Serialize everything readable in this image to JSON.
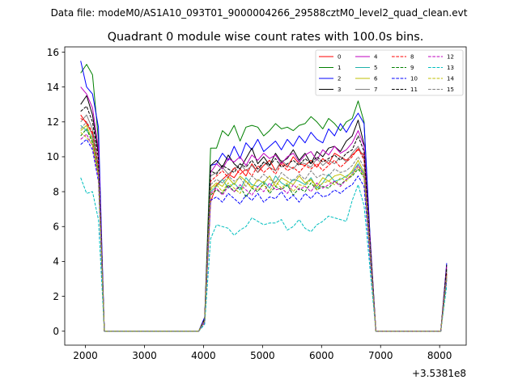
{
  "figure": {
    "suptitle": "Data file: modeM0/AS1A10_093T01_9000004266_29588cztM0_level2_quad_clean.evt"
  },
  "chart_data": {
    "type": "line",
    "title": "Quadrant 0 module wise count rates with 100.0s bins.",
    "xlabel": "",
    "ylabel": "",
    "x_offset_label": "+3.5381e8",
    "xlim": [
      1650,
      8450
    ],
    "ylim": [
      -0.8,
      16.3
    ],
    "x_ticks": [
      2000,
      3000,
      4000,
      5000,
      6000,
      7000,
      8000
    ],
    "x_tick_labels": [
      "2000",
      "3000",
      "4000",
      "5000",
      "6000",
      "7000",
      "8000"
    ],
    "y_ticks": [
      0,
      2,
      4,
      6,
      8,
      10,
      12,
      14,
      16
    ],
    "y_tick_labels": [
      "0",
      "2",
      "4",
      "6",
      "8",
      "10",
      "12",
      "14",
      "16"
    ],
    "legend_position": "top-right",
    "legend_columns": 4,
    "x": [
      1920,
      2020,
      2120,
      2220,
      2320,
      2420,
      2520,
      2620,
      2720,
      2820,
      2920,
      3020,
      3120,
      3220,
      3320,
      3420,
      3520,
      3620,
      3720,
      3820,
      3920,
      4020,
      4120,
      4220,
      4320,
      4420,
      4520,
      4620,
      4720,
      4820,
      4920,
      5020,
      5120,
      5220,
      5320,
      5420,
      5520,
      5620,
      5720,
      5820,
      5920,
      6020,
      6120,
      6220,
      6320,
      6420,
      6520,
      6620,
      6720,
      6820,
      6920,
      7020,
      7120,
      7220,
      7320,
      7420,
      7520,
      7620,
      7720,
      7820,
      7920,
      8020,
      8120
    ],
    "series": [
      {
        "name": "0",
        "color": "#ff0000",
        "dash": "solid",
        "values": [
          12.4,
          11.9,
          11.3,
          9.0,
          0,
          0,
          0,
          0,
          0,
          0,
          0,
          0,
          0,
          0,
          0,
          0,
          0,
          0,
          0,
          0,
          0,
          0.6,
          7.4,
          8.4,
          8.7,
          9.0,
          8.8,
          9.3,
          8.9,
          9.6,
          9.1,
          9.5,
          9.8,
          9.2,
          9.7,
          9.4,
          10.0,
          9.6,
          9.5,
          9.8,
          9.4,
          9.9,
          9.6,
          10.2,
          10.0,
          9.8,
          10.1,
          10.4,
          10.1,
          5.0,
          0,
          0,
          0,
          0,
          0,
          0,
          0,
          0,
          0,
          0,
          0,
          0,
          3.3
        ]
      },
      {
        "name": "1",
        "color": "#008000",
        "dash": "solid",
        "values": [
          14.8,
          15.3,
          14.7,
          11.0,
          0,
          0,
          0,
          0,
          0,
          0,
          0,
          0,
          0,
          0,
          0,
          0,
          0,
          0,
          0,
          0,
          0,
          0.8,
          10.5,
          10.5,
          11.5,
          11.2,
          11.8,
          10.9,
          11.7,
          11.8,
          11.7,
          11.2,
          11.5,
          11.9,
          11.6,
          11.7,
          11.5,
          11.8,
          11.9,
          12.3,
          12.0,
          11.6,
          12.2,
          11.9,
          11.5,
          12.0,
          12.2,
          13.2,
          12.0,
          5.5,
          0,
          0,
          0,
          0,
          0,
          0,
          0,
          0,
          0,
          0,
          0,
          0,
          3.5
        ]
      },
      {
        "name": "2",
        "color": "#0000ff",
        "dash": "solid",
        "values": [
          15.5,
          14.0,
          13.6,
          11.7,
          0,
          0,
          0,
          0,
          0,
          0,
          0,
          0,
          0,
          0,
          0,
          0,
          0,
          0,
          0,
          0,
          0,
          0.8,
          9.5,
          9.6,
          10.2,
          9.8,
          10.6,
          9.9,
          10.8,
          10.4,
          11.0,
          10.3,
          10.6,
          10.9,
          10.4,
          11.0,
          10.6,
          11.2,
          10.8,
          11.4,
          11.0,
          10.8,
          11.6,
          11.2,
          11.9,
          11.4,
          12.0,
          12.5,
          11.9,
          5.5,
          0,
          0,
          0,
          0,
          0,
          0,
          0,
          0,
          0,
          0,
          0,
          0,
          3.9
        ]
      },
      {
        "name": "3",
        "color": "#000000",
        "dash": "solid",
        "values": [
          13.0,
          13.5,
          12.4,
          10.2,
          0,
          0,
          0,
          0,
          0,
          0,
          0,
          0,
          0,
          0,
          0,
          0,
          0,
          0,
          0,
          0,
          0,
          0.7,
          9.5,
          9.8,
          9.4,
          10.1,
          9.6,
          9.3,
          9.9,
          10.5,
          9.6,
          10.0,
          9.5,
          10.2,
          9.7,
          9.9,
          10.4,
          9.8,
          10.2,
          9.6,
          10.3,
          10.0,
          10.5,
          10.6,
          10.3,
          10.9,
          11.2,
          12.1,
          10.7,
          5.2,
          0,
          0,
          0,
          0,
          0,
          0,
          0,
          0,
          0,
          0,
          0,
          0,
          3.8
        ]
      },
      {
        "name": "4",
        "color": "#bf00bf",
        "dash": "solid",
        "values": [
          14.0,
          13.6,
          12.8,
          10.5,
          0,
          0,
          0,
          0,
          0,
          0,
          0,
          0,
          0,
          0,
          0,
          0,
          0,
          0,
          0,
          0,
          0,
          0.7,
          9.1,
          9.6,
          9.3,
          9.9,
          9.7,
          10.0,
          9.5,
          10.1,
          9.8,
          10.2,
          9.9,
          10.1,
          9.6,
          10.0,
          10.2,
          9.7,
          10.1,
          10.3,
          9.8,
          10.4,
          10.1,
          10.6,
          10.2,
          10.4,
          10.8,
          11.5,
          10.6,
          5.3,
          0,
          0,
          0,
          0,
          0,
          0,
          0,
          0,
          0,
          0,
          0,
          0,
          3.7
        ]
      },
      {
        "name": "5",
        "color": "#20b2aa",
        "dash": "solid",
        "values": [
          11.8,
          11.5,
          11.1,
          9.3,
          0,
          0,
          0,
          0,
          0,
          0,
          0,
          0,
          0,
          0,
          0,
          0,
          0,
          0,
          0,
          0,
          0,
          0.6,
          8.0,
          8.3,
          8.7,
          8.2,
          8.5,
          8.1,
          8.8,
          8.4,
          8.3,
          8.6,
          8.2,
          8.9,
          8.5,
          8.3,
          8.7,
          8.6,
          8.4,
          8.8,
          8.2,
          8.5,
          9.0,
          8.6,
          8.7,
          8.9,
          9.1,
          9.6,
          9.0,
          4.5,
          0,
          0,
          0,
          0,
          0,
          0,
          0,
          0,
          0,
          0,
          0,
          0,
          3.1
        ]
      },
      {
        "name": "6",
        "color": "#bfbf00",
        "dash": "solid",
        "values": [
          11.5,
          11.8,
          10.9,
          9.1,
          0,
          0,
          0,
          0,
          0,
          0,
          0,
          0,
          0,
          0,
          0,
          0,
          0,
          0,
          0,
          0,
          0,
          0.6,
          8.2,
          8.5,
          8.3,
          8.8,
          8.4,
          8.9,
          8.6,
          8.2,
          8.7,
          8.5,
          8.9,
          8.3,
          8.8,
          8.6,
          8.4,
          8.9,
          8.5,
          8.7,
          8.3,
          8.8,
          8.6,
          8.9,
          9.0,
          8.8,
          9.2,
          9.8,
          9.1,
          4.6,
          0,
          0,
          0,
          0,
          0,
          0,
          0,
          0,
          0,
          0,
          0,
          0,
          3.2
        ]
      },
      {
        "name": "7",
        "color": "#808080",
        "dash": "solid",
        "values": [
          12.0,
          12.4,
          11.6,
          9.6,
          0,
          0,
          0,
          0,
          0,
          0,
          0,
          0,
          0,
          0,
          0,
          0,
          0,
          0,
          0,
          0,
          0,
          0.6,
          8.9,
          9.1,
          9.4,
          9.0,
          9.3,
          9.6,
          9.2,
          9.5,
          9.1,
          9.7,
          9.4,
          9.2,
          9.8,
          9.5,
          9.3,
          9.7,
          9.6,
          9.4,
          9.9,
          9.5,
          9.8,
          9.6,
          10.0,
          9.7,
          10.2,
          10.6,
          9.9,
          4.9,
          0,
          0,
          0,
          0,
          0,
          0,
          0,
          0,
          0,
          0,
          0,
          0,
          3.4
        ]
      },
      {
        "name": "8",
        "color": "#ff0000",
        "dash": "dashed",
        "values": [
          12.2,
          12.0,
          11.4,
          9.4,
          0,
          0,
          0,
          0,
          0,
          0,
          0,
          0,
          0,
          0,
          0,
          0,
          0,
          0,
          0,
          0,
          0,
          0.6,
          8.6,
          8.9,
          9.2,
          8.8,
          9.4,
          9.0,
          9.3,
          8.9,
          9.5,
          9.1,
          9.4,
          9.0,
          9.6,
          9.2,
          9.4,
          9.1,
          9.5,
          9.3,
          9.6,
          9.2,
          9.5,
          9.8,
          9.4,
          9.7,
          10.0,
          10.5,
          9.8,
          4.8,
          0,
          0,
          0,
          0,
          0,
          0,
          0,
          0,
          0,
          0,
          0,
          0,
          3.3
        ]
      },
      {
        "name": "9",
        "color": "#008000",
        "dash": "dashed",
        "values": [
          11.2,
          11.6,
          10.8,
          9.0,
          0,
          0,
          0,
          0,
          0,
          0,
          0,
          0,
          0,
          0,
          0,
          0,
          0,
          0,
          0,
          0,
          0,
          0.6,
          7.8,
          8.1,
          7.9,
          8.4,
          8.0,
          8.3,
          7.7,
          8.2,
          8.0,
          8.5,
          7.9,
          8.3,
          8.1,
          8.4,
          7.8,
          8.2,
          8.0,
          8.5,
          8.1,
          8.3,
          8.2,
          8.6,
          8.4,
          8.7,
          8.9,
          9.3,
          8.8,
          4.4,
          0,
          0,
          0,
          0,
          0,
          0,
          0,
          0,
          0,
          0,
          0,
          0,
          3.0
        ]
      },
      {
        "name": "10",
        "color": "#0000ff",
        "dash": "dashed",
        "values": [
          10.7,
          11.0,
          10.4,
          8.6,
          0,
          0,
          0,
          0,
          0,
          0,
          0,
          0,
          0,
          0,
          0,
          0,
          0,
          0,
          0,
          0,
          0,
          0.5,
          7.5,
          7.7,
          7.4,
          7.9,
          7.6,
          7.3,
          7.8,
          7.5,
          7.9,
          7.4,
          7.7,
          7.6,
          8.0,
          7.5,
          7.8,
          7.4,
          7.9,
          7.6,
          8.0,
          7.7,
          7.8,
          8.1,
          7.9,
          8.2,
          8.4,
          8.9,
          8.3,
          4.2,
          0,
          0,
          0,
          0,
          0,
          0,
          0,
          0,
          0,
          0,
          0,
          0,
          2.9
        ]
      },
      {
        "name": "11",
        "color": "#000000",
        "dash": "dashed",
        "values": [
          12.6,
          12.9,
          12.0,
          9.9,
          0,
          0,
          0,
          0,
          0,
          0,
          0,
          0,
          0,
          0,
          0,
          0,
          0,
          0,
          0,
          0,
          0,
          0.7,
          9.2,
          9.0,
          9.5,
          9.3,
          9.1,
          9.6,
          9.4,
          9.8,
          9.3,
          9.7,
          9.5,
          9.9,
          9.4,
          9.6,
          9.8,
          9.5,
          9.9,
          9.6,
          10.0,
          9.7,
          9.9,
          10.1,
          9.8,
          10.2,
          10.4,
          11.2,
          10.3,
          5.1,
          0,
          0,
          0,
          0,
          0,
          0,
          0,
          0,
          0,
          0,
          0,
          0,
          3.6
        ]
      },
      {
        "name": "12",
        "color": "#bf00bf",
        "dash": "dashed",
        "values": [
          11.0,
          11.3,
          10.6,
          8.8,
          0,
          0,
          0,
          0,
          0,
          0,
          0,
          0,
          0,
          0,
          0,
          0,
          0,
          0,
          0,
          0,
          0,
          0.5,
          7.9,
          8.2,
          7.8,
          8.3,
          8.0,
          8.4,
          8.1,
          7.8,
          8.3,
          8.0,
          8.5,
          8.1,
          8.2,
          7.9,
          8.4,
          8.1,
          8.3,
          8.0,
          8.5,
          8.2,
          8.4,
          8.6,
          8.3,
          8.7,
          9.0,
          9.5,
          8.9,
          4.4,
          0,
          0,
          0,
          0,
          0,
          0,
          0,
          0,
          0,
          0,
          0,
          0,
          3.1
        ]
      },
      {
        "name": "13",
        "color": "#00bfbf",
        "dash": "dashed",
        "values": [
          8.8,
          7.9,
          8.0,
          6.4,
          0,
          0,
          0,
          0,
          0,
          0,
          0,
          0,
          0,
          0,
          0,
          0,
          0,
          0,
          0,
          0,
          0,
          0.4,
          5.3,
          6.1,
          6.0,
          5.9,
          5.5,
          5.8,
          6.0,
          6.5,
          6.3,
          6.1,
          6.2,
          6.2,
          6.4,
          5.8,
          6.0,
          6.4,
          5.9,
          5.7,
          6.1,
          6.3,
          6.6,
          6.5,
          6.4,
          6.3,
          7.5,
          8.4,
          7.2,
          3.6,
          0,
          0,
          0,
          0,
          0,
          0,
          0,
          0,
          0,
          0,
          0,
          0,
          2.6
        ]
      },
      {
        "name": "14",
        "color": "#bfbf00",
        "dash": "dashed",
        "values": [
          11.4,
          11.1,
          10.7,
          8.9,
          0,
          0,
          0,
          0,
          0,
          0,
          0,
          0,
          0,
          0,
          0,
          0,
          0,
          0,
          0,
          0,
          0,
          0.6,
          8.1,
          8.4,
          8.0,
          8.5,
          8.2,
          7.9,
          8.6,
          8.3,
          8.1,
          8.4,
          8.0,
          8.6,
          8.2,
          8.5,
          8.0,
          8.4,
          8.3,
          8.7,
          8.1,
          8.5,
          8.6,
          8.4,
          8.8,
          8.6,
          9.0,
          9.4,
          8.9,
          4.5,
          0,
          0,
          0,
          0,
          0,
          0,
          0,
          0,
          0,
          0,
          0,
          0,
          3.1
        ]
      },
      {
        "name": "15",
        "color": "#808080",
        "dash": "dashed",
        "values": [
          11.6,
          12.0,
          11.2,
          9.2,
          0,
          0,
          0,
          0,
          0,
          0,
          0,
          0,
          0,
          0,
          0,
          0,
          0,
          0,
          0,
          0,
          0,
          0.6,
          8.4,
          8.7,
          8.5,
          8.9,
          8.6,
          8.8,
          8.3,
          8.9,
          8.6,
          9.0,
          8.7,
          8.5,
          9.1,
          8.8,
          8.6,
          9.0,
          8.7,
          9.2,
          8.8,
          9.0,
          8.9,
          9.3,
          9.1,
          9.2,
          9.5,
          10.0,
          9.4,
          4.7,
          0,
          0,
          0,
          0,
          0,
          0,
          0,
          0,
          0,
          0,
          0,
          0,
          3.2
        ]
      }
    ]
  }
}
